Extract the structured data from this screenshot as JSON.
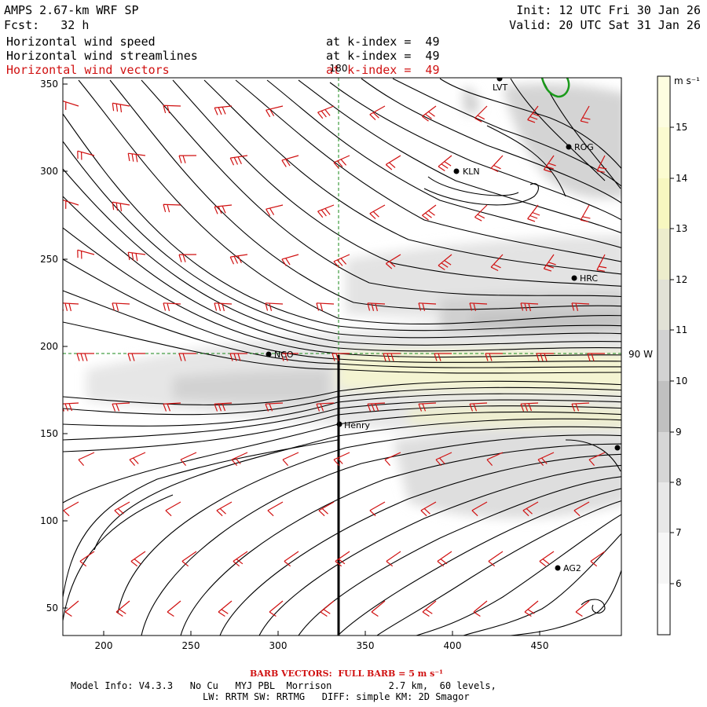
{
  "header": {
    "model_title": "AMPS 2.67-km WRF SP",
    "forecast": "Fcst:   32 h",
    "init": "Init: 12 UTC Fri 30 Jan 26",
    "valid": "Valid: 20 UTC Sat 31 Jan 26",
    "fields": [
      {
        "name": "Horizontal wind speed",
        "level": "at k-index =  49",
        "color": "#000000"
      },
      {
        "name": "Horizontal wind streamlines",
        "level": "at k-index =  49",
        "color": "#000000"
      },
      {
        "name": "Horizontal wind vectors",
        "level": "at k-index =  49",
        "color": "#d01010"
      }
    ]
  },
  "map": {
    "x_ticks": [
      "200",
      "250",
      "300",
      "350",
      "400",
      "450"
    ],
    "y_ticks": [
      "350",
      "300",
      "250",
      "200",
      "150",
      "100",
      "50"
    ],
    "meridian_label": "180",
    "parallel_label": "90 W",
    "stations": [
      {
        "id": "LVT",
        "label": "LVT"
      },
      {
        "id": "ROG",
        "label": "ROG"
      },
      {
        "id": "KLN",
        "label": "KLN"
      },
      {
        "id": "HRC",
        "label": "HRC"
      },
      {
        "id": "NCO",
        "label": "NCO"
      },
      {
        "id": "Henry",
        "label": "Henry"
      },
      {
        "id": "east",
        "label": ""
      },
      {
        "id": "AG2",
        "label": "AG2"
      }
    ]
  },
  "colorbar": {
    "units": "m s⁻¹",
    "labels": [
      "15",
      "14",
      "13",
      "12",
      "11",
      "10",
      "9",
      "8",
      "7",
      "6"
    ],
    "colors": [
      "#fdfde0",
      "#fbfbd0",
      "#f7f7c0",
      "#ededcc",
      "#e2e2d6",
      "#d2d2d2",
      "#c0c0c0",
      "#d6d6d6",
      "#e8e8e8",
      "#f6f6f6",
      "#ffffff"
    ]
  },
  "footer": {
    "barb_note": "BARB VECTORS:  FULL BARB = 5 m s⁻¹",
    "line1": "Model Info: V4.3.3   No Cu   MYJ PBL  Morrison          2.7 km,  60 levels,",
    "line2": "LW: RRTM SW: RRTMG   DIFF: simple KM: 2D Smagor"
  }
}
